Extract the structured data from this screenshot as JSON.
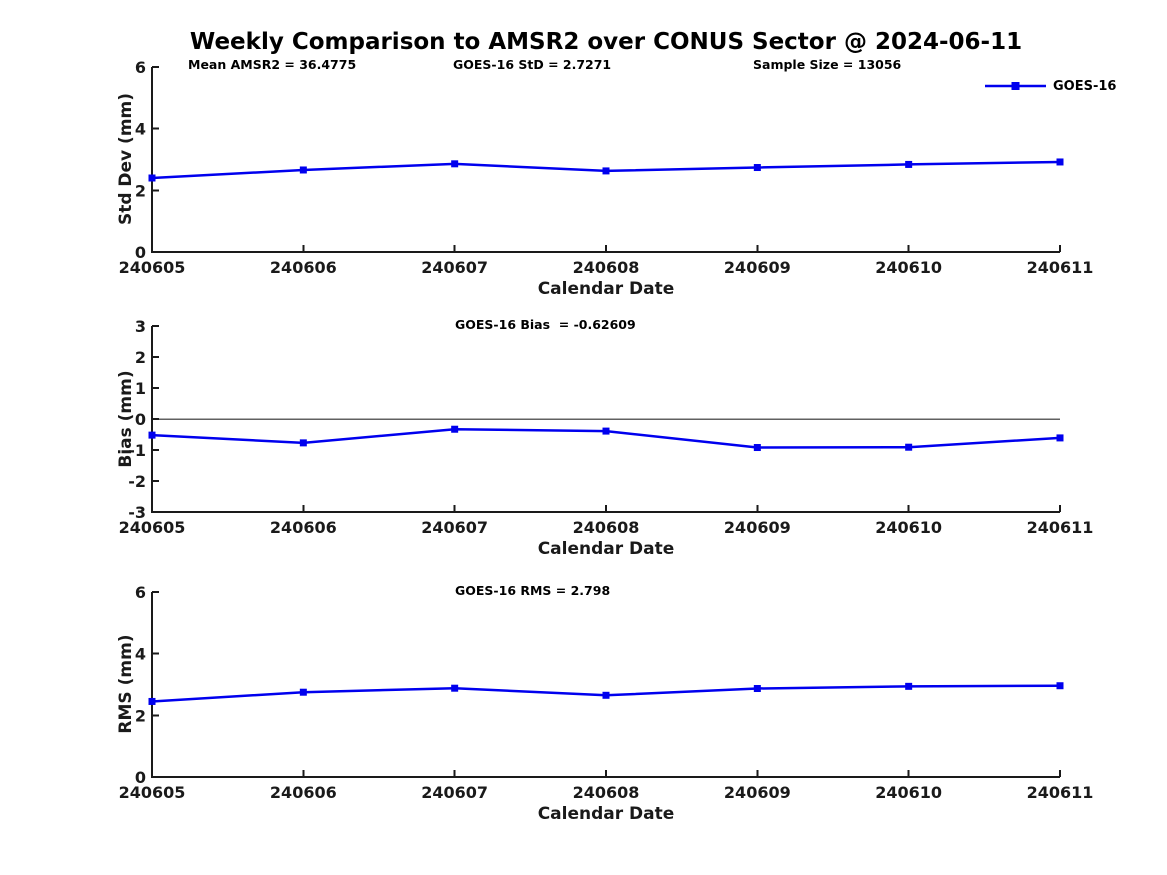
{
  "figure": {
    "title": "Weekly Comparison to AMSR2 over CONUS Sector @ 2024-06-11",
    "background": "#ffffff"
  },
  "colors": {
    "line": "#0000ee",
    "axis": "#1a1a1a",
    "zero_line": "#606060",
    "text": "#000000"
  },
  "legend": {
    "label": "GOES-16",
    "color": "#0000ee",
    "marker": "square",
    "position": "top-right"
  },
  "chart_data": [
    {
      "type": "line",
      "panel": "std-dev",
      "x": [
        "240605",
        "240606",
        "240607",
        "240608",
        "240609",
        "240610",
        "240611"
      ],
      "series": [
        {
          "name": "GOES-16",
          "values": [
            2.4,
            2.66,
            2.86,
            2.63,
            2.74,
            2.84,
            2.92
          ]
        }
      ],
      "annotations": [
        "Mean AMSR2 = 36.4775",
        "GOES-16 StD = 2.7271",
        "Sample Size = 13056"
      ],
      "xlabel": "Calendar Date",
      "ylabel": "Std Dev (mm)",
      "ylim": [
        0,
        6
      ],
      "yticks": [
        0,
        2,
        4,
        6
      ],
      "grid": false,
      "marker": "square",
      "zero_line": false
    },
    {
      "type": "line",
      "panel": "bias",
      "x": [
        "240605",
        "240606",
        "240607",
        "240608",
        "240609",
        "240610",
        "240611"
      ],
      "series": [
        {
          "name": "GOES-16",
          "values": [
            -0.52,
            -0.77,
            -0.33,
            -0.39,
            -0.92,
            -0.91,
            -0.61
          ]
        }
      ],
      "annotations": [
        "GOES-16 Bias  = -0.62609"
      ],
      "xlabel": "Calendar Date",
      "ylabel": "Bias (mm)",
      "ylim": [
        -3,
        3
      ],
      "yticks": [
        -3,
        -2,
        -1,
        0,
        1,
        2,
        3
      ],
      "grid": false,
      "marker": "square",
      "zero_line": true
    },
    {
      "type": "line",
      "panel": "rms",
      "x": [
        "240605",
        "240606",
        "240607",
        "240608",
        "240609",
        "240610",
        "240611"
      ],
      "series": [
        {
          "name": "GOES-16",
          "values": [
            2.45,
            2.75,
            2.88,
            2.65,
            2.87,
            2.94,
            2.96
          ]
        }
      ],
      "annotations": [
        "GOES-16 RMS = 2.798"
      ],
      "xlabel": "Calendar Date",
      "ylabel": "RMS (mm)",
      "ylim": [
        0,
        6
      ],
      "yticks": [
        0,
        2,
        4,
        6
      ],
      "grid": false,
      "marker": "square",
      "zero_line": false
    }
  ]
}
